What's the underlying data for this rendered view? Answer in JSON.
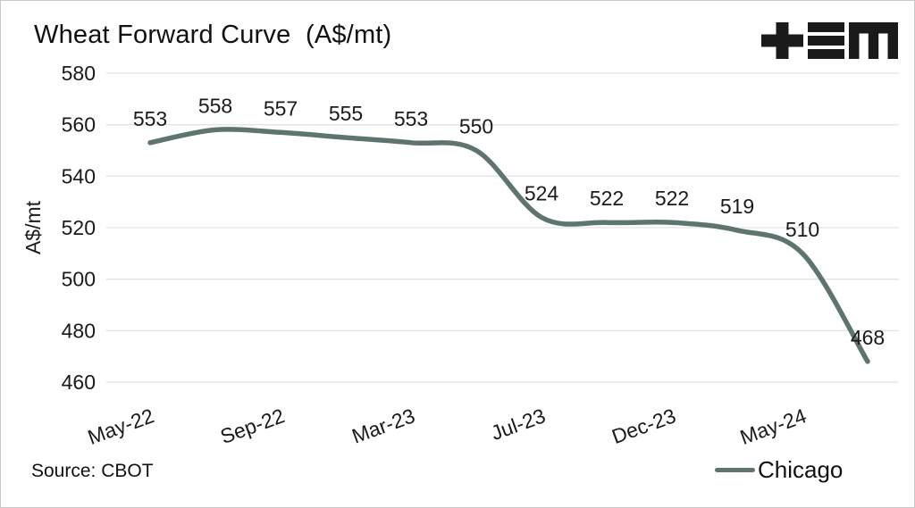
{
  "header": {
    "title": "Wheat Forward Curve  (A$/mt)"
  },
  "footer": {
    "source": "Source: CBOT"
  },
  "legend": {
    "items": [
      {
        "label": "Chicago",
        "color": "#5f7470"
      }
    ]
  },
  "colors": {
    "line": "#5f7470",
    "grid": "#e3e3e3",
    "text": "#1a1a1a",
    "frame": "#c9c9c9",
    "logo": "#1a1a1a"
  },
  "chart_data": {
    "type": "line",
    "title": "Wheat Forward Curve (A$/mt)",
    "ylabel": "A$/mt",
    "xlabel": "",
    "x_tick_labels": [
      "May-22",
      "Sep-22",
      "Mar-23",
      "Jul-23",
      "Dec-23",
      "May-24"
    ],
    "x_tick_point_indices": [
      0,
      2,
      4,
      6,
      8,
      10
    ],
    "series": [
      {
        "name": "Chicago",
        "color": "#5f7470",
        "values": [
          553,
          558,
          557,
          555,
          553,
          550,
          524,
          522,
          522,
          519,
          510,
          468
        ],
        "point_labels": [
          "553",
          "558",
          "557",
          "555",
          "553",
          "550",
          "524",
          "522",
          "522",
          "519",
          "510",
          "468"
        ]
      }
    ],
    "yticks": [
      460,
      480,
      500,
      520,
      540,
      560,
      580
    ],
    "ylim": [
      460,
      580
    ],
    "grid": true,
    "legend_position": "bottom-right",
    "source": "Source: CBOT"
  }
}
